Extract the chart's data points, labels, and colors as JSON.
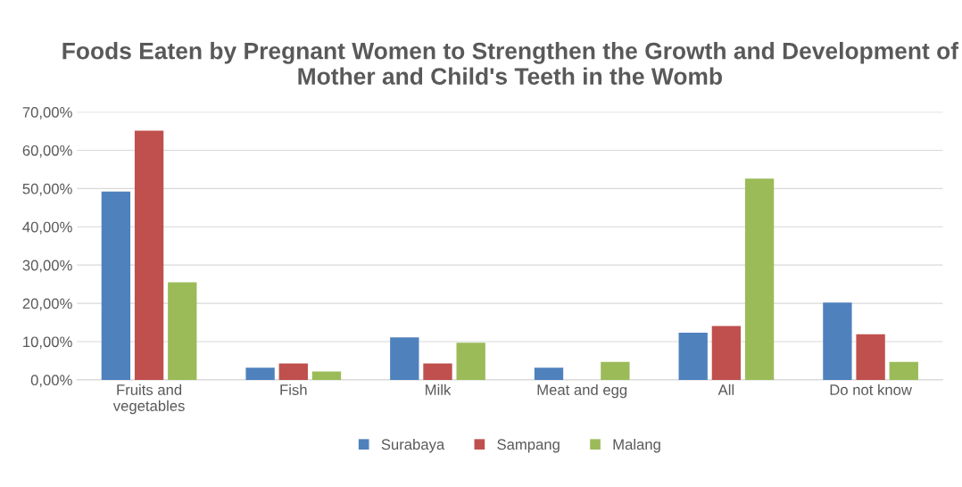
{
  "chart_data": {
    "type": "bar",
    "title": "Foods Eaten by Pregnant Women to Strengthen the Growth and Development of Mother and Child's Teeth in the Womb",
    "categories": [
      "Fruits and\nvegetables",
      "Fish",
      "Milk",
      "Meat and egg",
      "All",
      "Do not know"
    ],
    "series": [
      {
        "name": "Surabaya",
        "color": "#4f81bd",
        "values": [
          49.2,
          3.2,
          11.1,
          3.2,
          12.3,
          20.2
        ]
      },
      {
        "name": "Sampang",
        "color": "#c0504d",
        "values": [
          65.1,
          4.3,
          4.3,
          0,
          14.1,
          11.9
        ]
      },
      {
        "name": "Malang",
        "color": "#9bbb59",
        "values": [
          25.5,
          2.2,
          9.7,
          4.7,
          52.6,
          4.7
        ]
      }
    ],
    "ylim": [
      0,
      70
    ],
    "yticks": [
      {
        "value": 0,
        "label": "0,00%"
      },
      {
        "value": 10,
        "label": "10,00%"
      },
      {
        "value": 20,
        "label": "20,00%"
      },
      {
        "value": 30,
        "label": "30,00%"
      },
      {
        "value": 40,
        "label": "40,00%"
      },
      {
        "value": 50,
        "label": "50,00%"
      },
      {
        "value": 60,
        "label": "60,00%"
      },
      {
        "value": 70,
        "label": "70,00%"
      }
    ],
    "grid": "y",
    "legend": "bottom"
  }
}
